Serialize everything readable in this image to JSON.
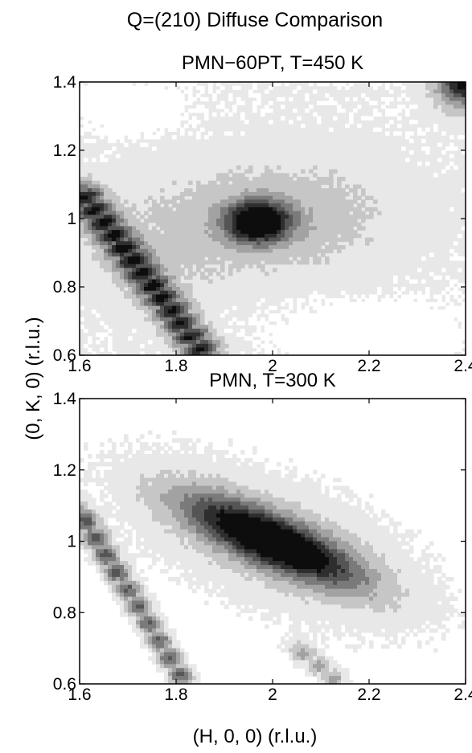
{
  "figure": {
    "suptitle": "Q=(210) Diffuse Comparison",
    "ylabel": "(0, K, 0) (r.l.u.)",
    "xlabel": "(H, 0, 0) (r.l.u.)"
  },
  "colors": {
    "levels": [
      "#ffffff",
      "#e8e8e8",
      "#c6c6c6",
      "#a2a2a2",
      "#7a7a7a",
      "#555555",
      "#2e2e2e",
      "#0d0d0d"
    ],
    "line": "#000000",
    "background": "#ffffff"
  },
  "chart_data": [
    {
      "type": "heatmap",
      "subtype": "filled-contour",
      "title": "PMN−60PT, T=450 K",
      "xlabel": "",
      "ylabel": "",
      "xlim": [
        1.6,
        2.4
      ],
      "ylim": [
        0.6,
        1.4
      ],
      "xticks": [
        "1.6",
        "1.8",
        "2",
        "2.2",
        "2.4"
      ],
      "yticks": [
        "0.6",
        "0.8",
        "1",
        "1.2",
        "1.4"
      ],
      "colormap": "gray-reversed",
      "background_level": 1,
      "features": [
        {
          "kind": "peak",
          "center": [
            1.97,
            0.99
          ],
          "sigma": [
            0.045,
            0.042
          ],
          "amplitude": 7.5
        },
        {
          "kind": "halo",
          "center": [
            2.02,
            1.01
          ],
          "sigma": [
            0.16,
            0.11
          ],
          "amplitude": 1.6
        },
        {
          "kind": "band",
          "from": [
            1.6,
            1.08
          ],
          "to": [
            1.86,
            0.6
          ],
          "width": 0.028,
          "amplitude": 6.2,
          "spots": 13
        },
        {
          "kind": "region",
          "description": "left-center flank",
          "center": [
            1.78,
            0.92
          ],
          "sigma": [
            0.14,
            0.12
          ],
          "amplitude": 0.7
        },
        {
          "kind": "corner",
          "center": [
            2.4,
            1.4
          ],
          "sigma": [
            0.04,
            0.05
          ],
          "amplitude": 6.5
        },
        {
          "kind": "hole",
          "center": [
            1.7,
            1.33
          ],
          "sigma": [
            0.08,
            0.05
          ],
          "amplitude": -0.9
        },
        {
          "kind": "hole",
          "center": [
            2.2,
            0.66
          ],
          "sigma": [
            0.14,
            0.07
          ],
          "amplitude": -0.9
        }
      ]
    },
    {
      "type": "heatmap",
      "subtype": "filled-contour",
      "title": "PMN, T=300 K",
      "xlabel": "(H, 0, 0) (r.l.u.)",
      "ylabel": "(0, K, 0) (r.l.u.)",
      "xlim": [
        1.6,
        2.4
      ],
      "ylim": [
        0.6,
        1.4
      ],
      "xticks": [
        "1.6",
        "1.8",
        "2",
        "2.2",
        "2.4"
      ],
      "yticks": [
        "0.6",
        "0.8",
        "1",
        "1.2",
        "1.4"
      ],
      "colormap": "gray-reversed",
      "background_level": 0,
      "features": [
        {
          "kind": "ridge",
          "center": [
            2.0,
            1.0
          ],
          "angle_deg": -32,
          "sigma_along": 0.14,
          "sigma_across": 0.045,
          "amplitude": 7.8
        },
        {
          "kind": "halo",
          "center": [
            2.0,
            1.0
          ],
          "angle_deg": -32,
          "sigma_along": 0.3,
          "sigma_across": 0.14,
          "amplitude": 2.2
        },
        {
          "kind": "band",
          "from": [
            1.6,
            1.08
          ],
          "to": [
            1.82,
            0.6
          ],
          "width": 0.02,
          "amplitude": 5.0,
          "spots": 10
        },
        {
          "kind": "band",
          "from": [
            2.05,
            0.7
          ],
          "to": [
            2.14,
            0.6
          ],
          "width": 0.02,
          "amplitude": 3.0,
          "spots": 3
        }
      ]
    }
  ]
}
